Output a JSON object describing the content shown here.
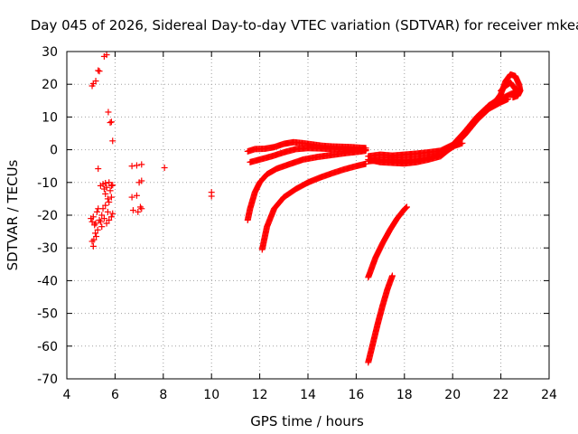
{
  "chart_data": {
    "type": "scatter",
    "title": "Day 045 of 2026, Sidereal Day-to-day VTEC variation (SDTVAR) for receiver mkea",
    "xlabel": "GPS time / hours",
    "ylabel": "SDTVAR / TECUs",
    "xlim": [
      4,
      24
    ],
    "ylim": [
      -70,
      30
    ],
    "xticks": [
      4,
      6,
      8,
      10,
      12,
      14,
      16,
      18,
      20,
      22,
      24
    ],
    "yticks": [
      30,
      20,
      10,
      0,
      -10,
      -20,
      -30,
      -40,
      -50,
      -60,
      -70
    ],
    "grid": true,
    "marker": "+",
    "color": "#ff0000",
    "scatter_points": [
      [
        5.05,
        19.5
      ],
      [
        5.1,
        20.2
      ],
      [
        5.2,
        21.0
      ],
      [
        5.3,
        24.2
      ],
      [
        5.35,
        24.0
      ],
      [
        5.55,
        28.5
      ],
      [
        5.65,
        29.0
      ],
      [
        5.72,
        11.5
      ],
      [
        5.8,
        8.3
      ],
      [
        5.85,
        8.5
      ],
      [
        5.9,
        2.7
      ],
      [
        5.3,
        -5.8
      ],
      [
        5.4,
        -11.0
      ],
      [
        5.5,
        -10.5
      ],
      [
        5.55,
        -12.0
      ],
      [
        5.6,
        -10.2
      ],
      [
        5.65,
        -11.5
      ],
      [
        5.75,
        -10.0
      ],
      [
        5.8,
        -12.5
      ],
      [
        5.85,
        -11.0
      ],
      [
        5.9,
        -10.8
      ],
      [
        5.6,
        -13.5
      ],
      [
        5.7,
        -15.0
      ],
      [
        5.75,
        -16.0
      ],
      [
        5.85,
        -14.5
      ],
      [
        5.6,
        -17.0
      ],
      [
        5.5,
        -18.0
      ],
      [
        5.45,
        -20.0
      ],
      [
        5.55,
        -21.0
      ],
      [
        5.65,
        -22.5
      ],
      [
        5.75,
        -21.5
      ],
      [
        5.85,
        -20.5
      ],
      [
        5.9,
        -19.5
      ],
      [
        5.7,
        -19.0
      ],
      [
        5.0,
        -21.0
      ],
      [
        5.05,
        -22.0
      ],
      [
        5.1,
        -20.5
      ],
      [
        5.15,
        -23.0
      ],
      [
        5.2,
        -22.5
      ],
      [
        5.25,
        -19.0
      ],
      [
        5.3,
        -18.0
      ],
      [
        5.35,
        -21.5
      ],
      [
        5.4,
        -22.0
      ],
      [
        5.45,
        -23.5
      ],
      [
        5.05,
        -28.0
      ],
      [
        5.1,
        -29.5
      ],
      [
        5.12,
        -27.5
      ],
      [
        5.18,
        -25.5
      ],
      [
        5.22,
        -26.5
      ],
      [
        5.28,
        -24.5
      ],
      [
        6.7,
        -5.0
      ],
      [
        6.9,
        -4.8
      ],
      [
        7.1,
        -4.5
      ],
      [
        7.1,
        -9.5
      ],
      [
        7.0,
        -10.0
      ],
      [
        6.9,
        -14.0
      ],
      [
        6.7,
        -14.5
      ],
      [
        6.75,
        -18.5
      ],
      [
        6.95,
        -19.0
      ],
      [
        7.05,
        -17.5
      ],
      [
        7.1,
        -18.0
      ],
      [
        8.05,
        -5.5
      ],
      [
        10.0,
        -13.0
      ],
      [
        10.0,
        -14.2
      ]
    ],
    "arcs": [
      {
        "x": [
          11.5,
          11.8,
          12.2,
          12.6,
          13.0,
          13.4,
          13.8,
          14.2,
          14.6,
          15.0,
          15.4,
          15.8,
          16.2,
          16.4
        ],
        "y": [
          -0.5,
          0.2,
          0.3,
          0.8,
          1.8,
          2.3,
          2.0,
          1.6,
          1.2,
          1.0,
          0.9,
          0.8,
          0.6,
          0.5
        ]
      },
      {
        "x": [
          11.6,
          12.0,
          12.5,
          13.0,
          13.5,
          14.0,
          14.5,
          15.0,
          15.5,
          16.0,
          16.4
        ],
        "y": [
          -3.8,
          -3.0,
          -2.0,
          -0.8,
          0.2,
          0.5,
          0.4,
          0.2,
          0.1,
          0.0,
          0.0
        ]
      },
      {
        "x": [
          11.5,
          11.6,
          11.8,
          12.0,
          12.3,
          12.7,
          13.2,
          13.8,
          14.4,
          15.0,
          15.6,
          16.1,
          16.4
        ],
        "y": [
          -21.5,
          -18.0,
          -13.0,
          -10.0,
          -7.5,
          -5.8,
          -4.5,
          -3.0,
          -2.2,
          -1.6,
          -1.0,
          -0.6,
          -0.3
        ]
      },
      {
        "x": [
          12.1,
          12.3,
          12.6,
          13.0,
          13.5,
          14.0,
          14.5,
          15.0,
          15.5,
          16.0,
          16.4
        ],
        "y": [
          -30.5,
          -23.5,
          -18.0,
          -14.5,
          -12.0,
          -10.0,
          -8.5,
          -7.2,
          -6.0,
          -5.0,
          -4.3
        ]
      },
      {
        "x": [
          16.5,
          16.8,
          17.1,
          17.4,
          17.7,
          18.0,
          18.1
        ],
        "y": [
          -39.0,
          -33.0,
          -28.5,
          -24.5,
          -21.0,
          -18.2,
          -17.5
        ]
      },
      {
        "x": [
          16.5,
          16.7,
          16.9,
          17.1,
          17.3,
          17.5
        ],
        "y": [
          -65.0,
          -59.0,
          -53.0,
          -47.5,
          -42.5,
          -38.5
        ]
      },
      {
        "x": [
          16.5,
          17.0,
          17.5,
          18.0,
          18.5,
          19.0,
          19.5,
          20.0,
          20.5,
          21.0,
          21.5,
          22.0,
          22.4,
          22.8
        ],
        "y": [
          -2.0,
          -1.5,
          -1.8,
          -1.5,
          -1.2,
          -0.8,
          -0.3,
          1.5,
          5.5,
          10.0,
          13.5,
          15.5,
          17.0,
          18.0
        ]
      },
      {
        "x": [
          16.5,
          17.0,
          17.5,
          18.0,
          18.5,
          19.0,
          19.5,
          20.0,
          20.5,
          21.0,
          21.5,
          22.0,
          22.3
        ],
        "y": [
          -3.5,
          -3.2,
          -3.0,
          -3.2,
          -3.0,
          -2.4,
          -1.4,
          0.8,
          4.5,
          9.0,
          12.5,
          14.5,
          15.5
        ]
      },
      {
        "x": [
          16.5,
          17.0,
          17.5,
          18.0,
          18.5,
          19.0,
          19.5,
          20.0,
          20.4
        ],
        "y": [
          -3.0,
          -3.8,
          -4.0,
          -4.2,
          -3.8,
          -3.0,
          -2.0,
          1.0,
          2.0
        ]
      },
      {
        "x": [
          21.5,
          21.8,
          22.0,
          22.2,
          22.4,
          22.6,
          22.75,
          22.8,
          22.7,
          22.5
        ],
        "y": [
          13.5,
          15.0,
          17.0,
          21.0,
          23.0,
          22.5,
          20.0,
          18.0,
          16.5,
          16.0
        ]
      },
      {
        "x": [
          22.0,
          22.2,
          22.4,
          22.5,
          22.6,
          22.75
        ],
        "y": [
          18.0,
          19.5,
          20.5,
          19.5,
          18.5,
          17.5
        ]
      }
    ]
  }
}
